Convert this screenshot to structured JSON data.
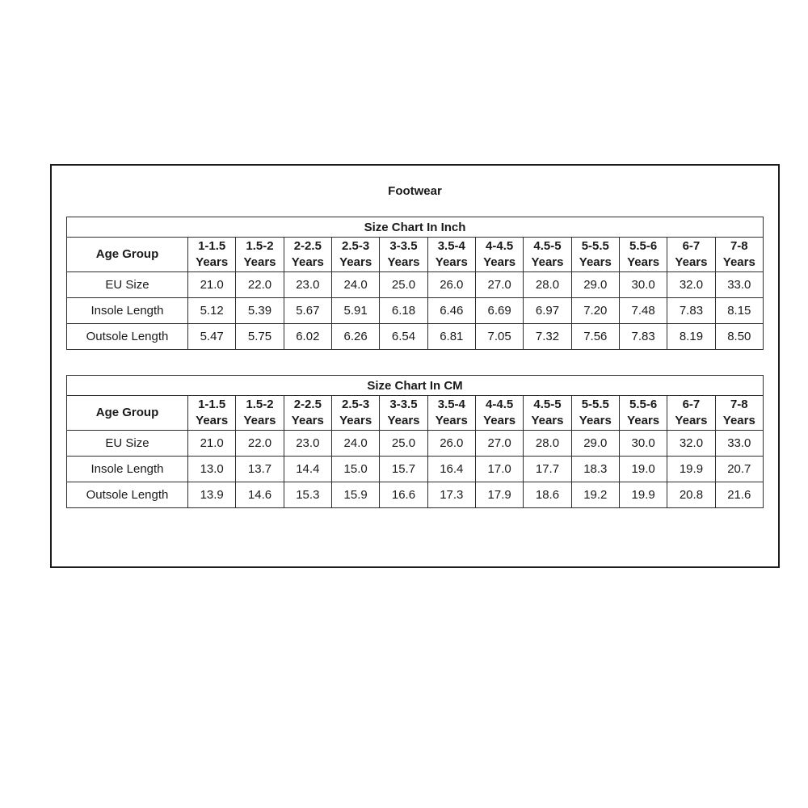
{
  "title": "Footwear",
  "years_label": "Years",
  "tables": [
    {
      "caption": "Size Chart In Inch",
      "age_header_label": "Age Group",
      "age_groups": [
        "1-1.5",
        "1.5-2",
        "2-2.5",
        "2.5-3",
        "3-3.5",
        "3.5-4",
        "4-4.5",
        "4.5-5",
        "5-5.5",
        "5.5-6",
        "6-7",
        "7-8"
      ],
      "rows": [
        {
          "label": "EU Size",
          "bold": true,
          "values": [
            "21.0",
            "22.0",
            "23.0",
            "24.0",
            "25.0",
            "26.0",
            "27.0",
            "28.0",
            "29.0",
            "30.0",
            "32.0",
            "33.0"
          ]
        },
        {
          "label": "Insole Length",
          "bold": false,
          "values": [
            "5.12",
            "5.39",
            "5.67",
            "5.91",
            "6.18",
            "6.46",
            "6.69",
            "6.97",
            "7.20",
            "7.48",
            "7.83",
            "8.15"
          ]
        },
        {
          "label": "Outsole Length",
          "bold": false,
          "values": [
            "5.47",
            "5.75",
            "6.02",
            "6.26",
            "6.54",
            "6.81",
            "7.05",
            "7.32",
            "7.56",
            "7.83",
            "8.19",
            "8.50"
          ]
        }
      ]
    },
    {
      "caption": "Size Chart In CM",
      "age_header_label": "Age Group",
      "age_groups": [
        "1-1.5",
        "1.5-2",
        "2-2.5",
        "2.5-3",
        "3-3.5",
        "3.5-4",
        "4-4.5",
        "4.5-5",
        "5-5.5",
        "5.5-6",
        "6-7",
        "7-8"
      ],
      "rows": [
        {
          "label": "EU Size",
          "bold": true,
          "values": [
            "21.0",
            "22.0",
            "23.0",
            "24.0",
            "25.0",
            "26.0",
            "27.0",
            "28.0",
            "29.0",
            "30.0",
            "32.0",
            "33.0"
          ]
        },
        {
          "label": "Insole Length",
          "bold": false,
          "values": [
            "13.0",
            "13.7",
            "14.4",
            "15.0",
            "15.7",
            "16.4",
            "17.0",
            "17.7",
            "18.3",
            "19.0",
            "19.9",
            "20.7"
          ]
        },
        {
          "label": "Outsole Length",
          "bold": false,
          "values": [
            "13.9",
            "14.6",
            "15.3",
            "15.9",
            "16.6",
            "17.3",
            "17.9",
            "18.6",
            "19.2",
            "19.9",
            "20.8",
            "21.6"
          ]
        }
      ]
    }
  ],
  "colors": {
    "text": "#1a1a1a",
    "border": "#2e2e2e",
    "background": "#ffffff"
  }
}
